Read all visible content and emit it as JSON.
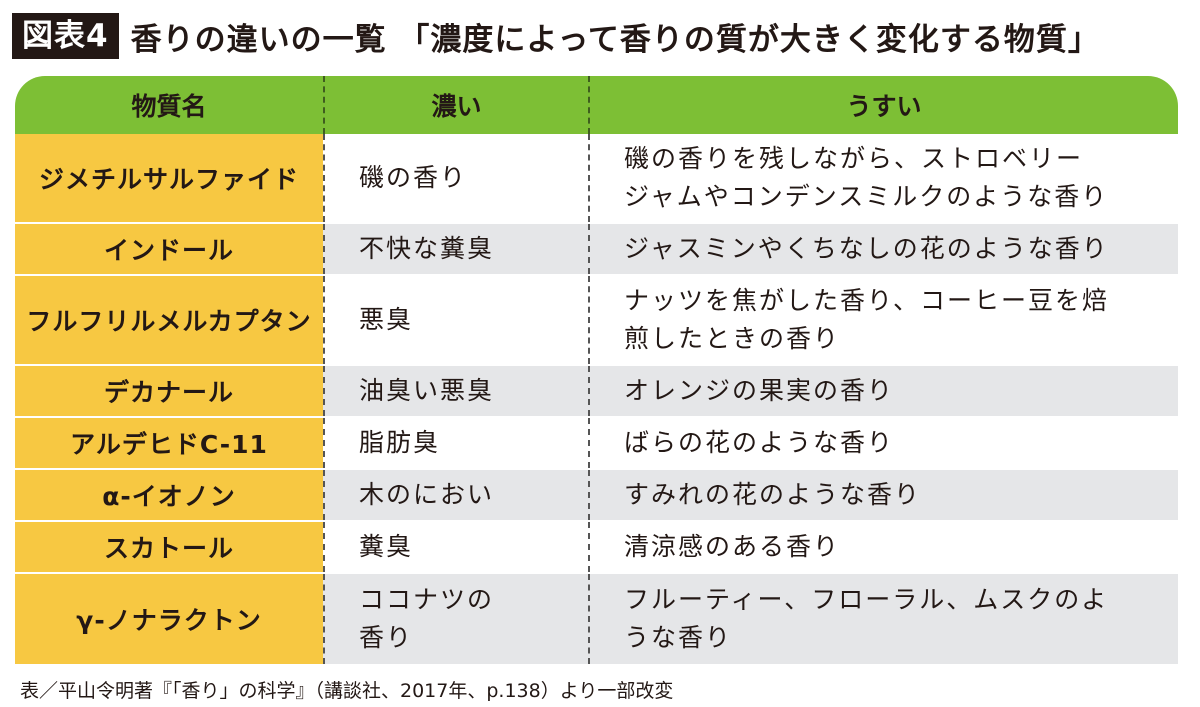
{
  "header": {
    "figure_label": "図表4",
    "title": "香りの違いの一覧 「濃度によって香りの質が大きく変化する物質」"
  },
  "table": {
    "columns": [
      "物質名",
      "濃い",
      "うすい"
    ],
    "rows": [
      {
        "name": "ジメチルサルファイド",
        "dense": "磯の香り",
        "thin": "磯の香りを残しながら、ストロベリー\nジャムやコンデンスミルクのような香り"
      },
      {
        "name": "インドール",
        "dense": "不快な糞臭",
        "thin": "ジャスミンやくちなしの花のような香り"
      },
      {
        "name": "フルフリルメルカプタン",
        "dense": "悪臭",
        "thin": "ナッツを焦がした香り、コーヒー豆を焙\n煎したときの香り"
      },
      {
        "name": "デカナール",
        "dense": "油臭い悪臭",
        "thin": "オレンジの果実の香り"
      },
      {
        "name": "アルデヒドC-11",
        "dense": "脂肪臭",
        "thin": "ばらの花のような香り"
      },
      {
        "name": "α-イオノン",
        "dense": "木のにおい",
        "thin": "すみれの花のような香り"
      },
      {
        "name": "スカトール",
        "dense": "糞臭",
        "thin": "清涼感のある香り"
      },
      {
        "name": "γ-ノナラクトン",
        "dense": "ココナツの\n香り",
        "thin": "フルーティー、フローラル、ムスクのよ\nうな香り"
      }
    ]
  },
  "source": "表／平山令明著『「香り」の科学』（講談社、2017年、p.138）より一部改変",
  "colors": {
    "header_bg": "#7dbf35",
    "name_col_bg": "#f7c842",
    "alt_row_bg": "#e5e6e8",
    "label_bg": "#231815"
  }
}
